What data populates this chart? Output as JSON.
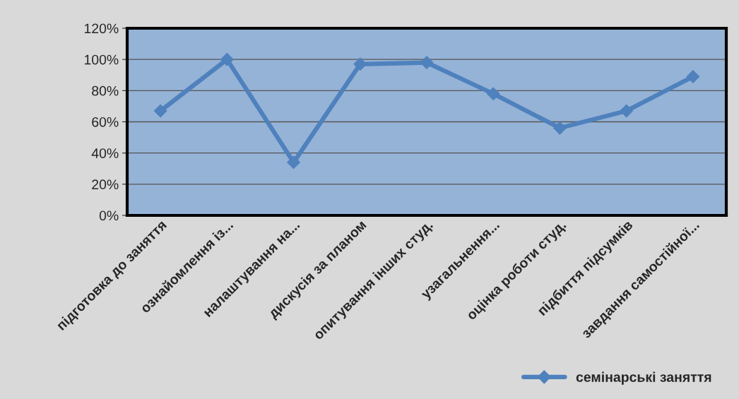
{
  "chart_data": {
    "type": "line",
    "categories": [
      "підготовка до заняття",
      "ознайомлення із...",
      "налаштування на...",
      "дискусія за планом",
      "опитування інших студ.",
      "узагальнення...",
      "оцінка роботи студ.",
      "підбиття підсумків",
      "завдання самостійної..."
    ],
    "series": [
      {
        "name": "семінарські заняття",
        "color": "#4f81bd",
        "values": [
          0.67,
          1.0,
          0.34,
          0.97,
          0.98,
          0.78,
          0.56,
          0.67,
          0.89
        ]
      }
    ],
    "ylim": [
      0,
      1.2
    ],
    "yticks": [
      {
        "value": 0,
        "label": "0%"
      },
      {
        "value": 0.2,
        "label": "20%"
      },
      {
        "value": 0.4,
        "label": "40%"
      },
      {
        "value": 0.6,
        "label": "60%"
      },
      {
        "value": 0.8,
        "label": "80%"
      },
      {
        "value": 1.0,
        "label": "100%"
      },
      {
        "value": 1.2,
        "label": "120%"
      }
    ],
    "grid": "y",
    "legend": "bottom right",
    "marker": "diamond",
    "line_style": "solid"
  }
}
